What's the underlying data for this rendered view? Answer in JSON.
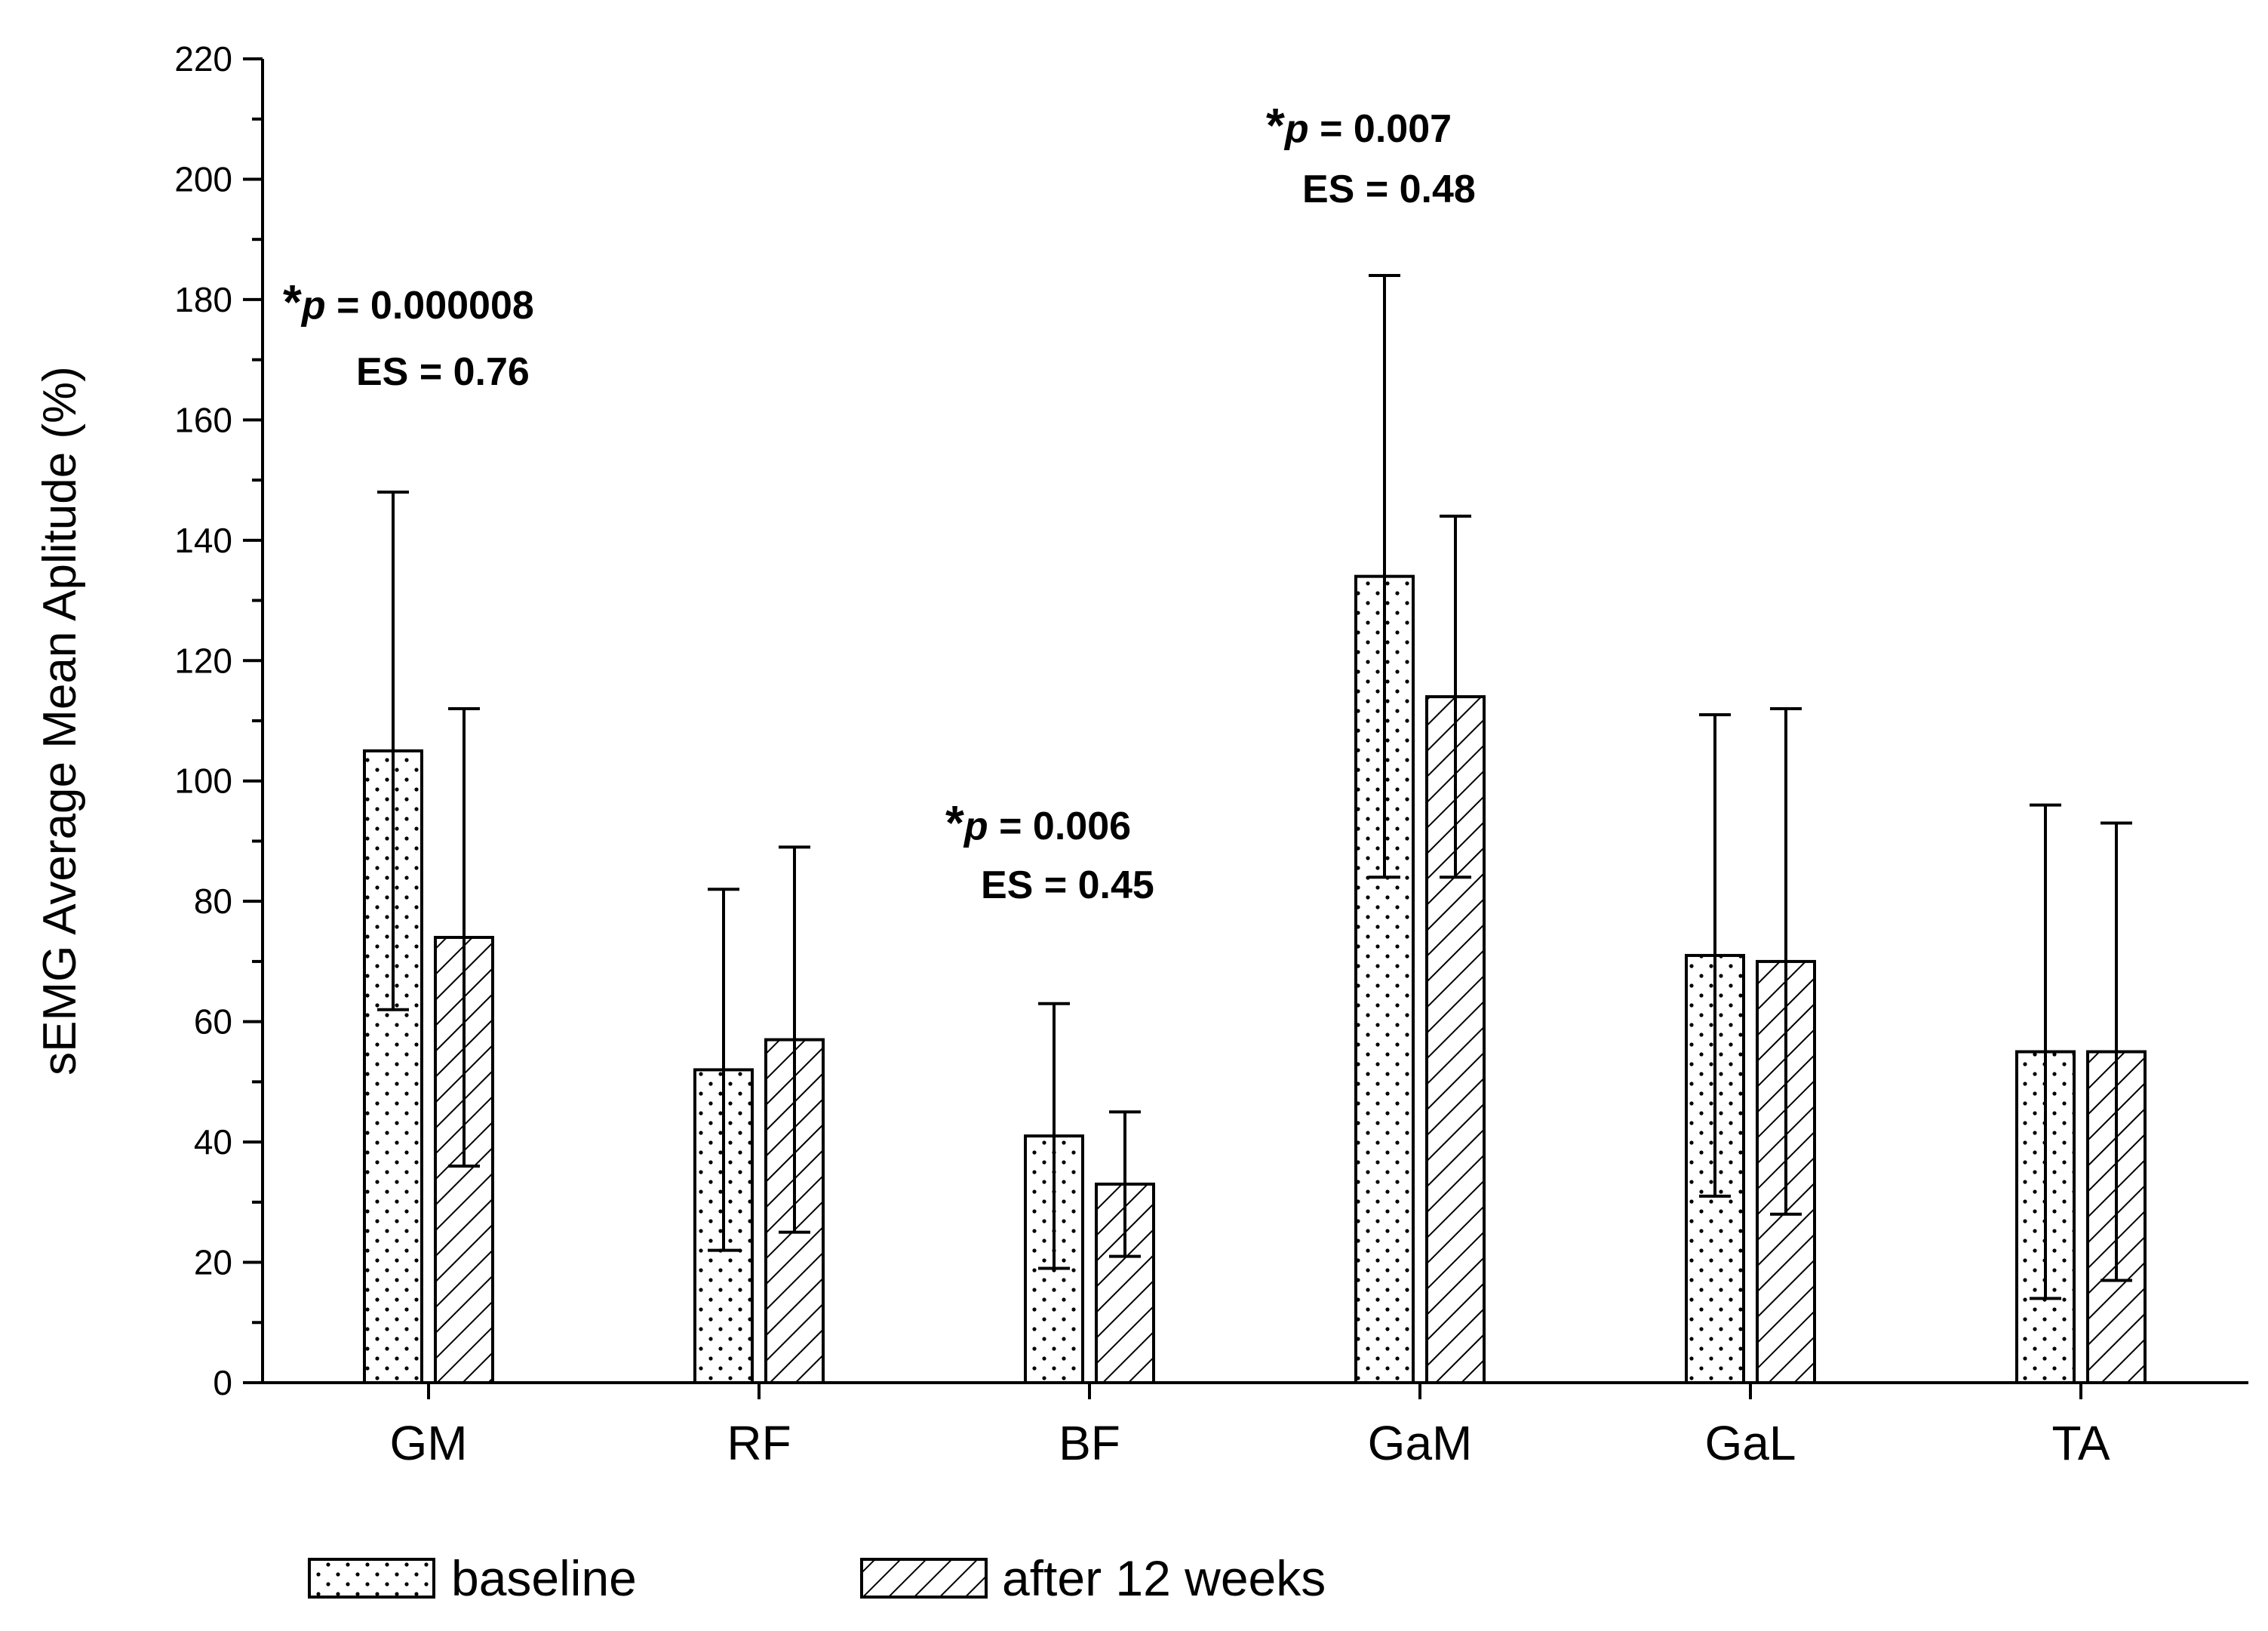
{
  "chart_data": {
    "type": "bar",
    "ylabel": "sEMG Average Mean Aplitude (%)",
    "xlabel": "",
    "ylim": [
      0,
      220
    ],
    "y_major_ticks": [
      0,
      20,
      40,
      60,
      80,
      100,
      120,
      140,
      160,
      180,
      200,
      220
    ],
    "y_tick_labels": [
      "0",
      "20",
      "40",
      "60",
      "80",
      "100",
      "120",
      "140",
      "160",
      "180",
      "200",
      "220"
    ],
    "y_minor_step": 10,
    "categories": [
      "GM",
      "RF",
      "BF",
      "GaM",
      "GaL",
      "TA"
    ],
    "series": [
      {
        "name": "baseline",
        "pattern": "dots",
        "values": [
          105,
          52,
          41,
          134,
          71,
          55
        ],
        "error_upper": [
          148,
          82,
          63,
          184,
          111,
          96
        ],
        "error_lower": [
          62,
          22,
          19,
          84,
          31,
          14
        ]
      },
      {
        "name": "after 12 weeks",
        "pattern": "hatch",
        "values": [
          74,
          57,
          33,
          114,
          70,
          55
        ],
        "error_upper": [
          112,
          89,
          45,
          144,
          112,
          93
        ],
        "error_lower": [
          36,
          25,
          21,
          84,
          28,
          17
        ]
      }
    ],
    "annotations": [
      {
        "category": "GM",
        "star": "*",
        "p_symbol": "p",
        "p_text": " = 0.000008",
        "es_text": "ES = 0.76"
      },
      {
        "category": "BF",
        "star": "*",
        "p_symbol": "p",
        "p_text": " = 0.006",
        "es_text": "ES = 0.45"
      },
      {
        "category": "GaM",
        "star": "*",
        "p_symbol": "p",
        "p_text": " = 0.007",
        "es_text": "ES = 0.48"
      }
    ],
    "legend": [
      "baseline",
      "after 12 weeks"
    ],
    "legend_position": "bottom",
    "grid": false
  }
}
